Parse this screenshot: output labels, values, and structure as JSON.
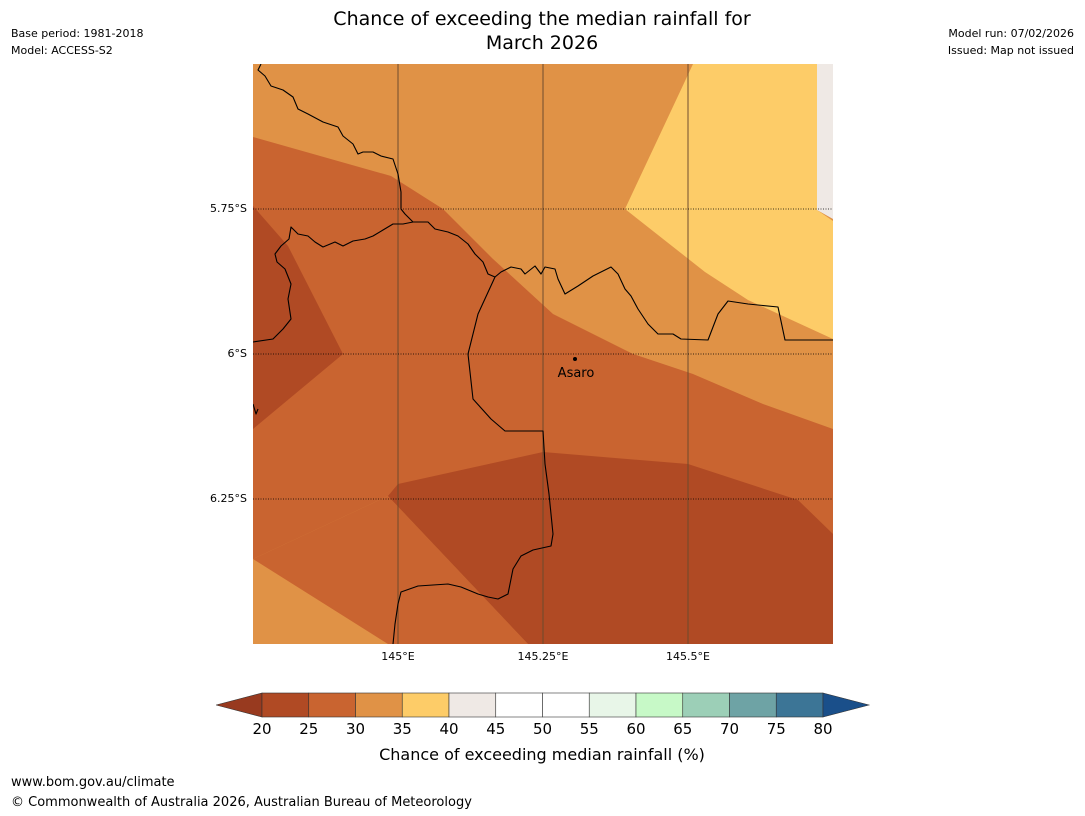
{
  "header": {
    "title_line1": "Chance of exceeding the median rainfall for",
    "title_line2": "March 2026",
    "base_period": "Base period: 1981-2018",
    "model": "Model: ACCESS-S2",
    "model_run": "Model run: 07/02/2026",
    "issued": "Issued: Map not issued"
  },
  "map": {
    "latitude_labels": [
      "5.75°S",
      "6°S",
      "6.25°S"
    ],
    "longitude_labels": [
      "145°E",
      "145.25°E",
      "145.5°E"
    ],
    "place": {
      "name": "Asaro"
    },
    "colors": {
      "20-25": "#b04a24",
      "25-30": "#c96430",
      "30-35": "#e09246",
      "35-40": "#fdcc68",
      "40-45": "#efe9e5",
      "boundary": "#000000",
      "gridline": "#6b4a2e"
    }
  },
  "colorbar": {
    "ticks": [
      "20",
      "25",
      "30",
      "35",
      "40",
      "45",
      "50",
      "55",
      "60",
      "65",
      "70",
      "75",
      "80"
    ],
    "colors": [
      "#b04a24",
      "#c96430",
      "#e09246",
      "#fdcc68",
      "#efe9e5",
      "#ffffff",
      "#ffffff",
      "#e8f6e8",
      "#c7f9c7",
      "#9ccfb7",
      "#6ea3a5",
      "#3c7596"
    ],
    "lower_extend_color": "#983a1f",
    "upper_extend_color": "#1a4f8a",
    "label": "Chance of exceeding median rainfall (%)"
  },
  "footer": {
    "website": "www.bom.gov.au/climate",
    "copyright": "© Commonwealth of Australia 2026, Australian Bureau of Meteorology"
  }
}
